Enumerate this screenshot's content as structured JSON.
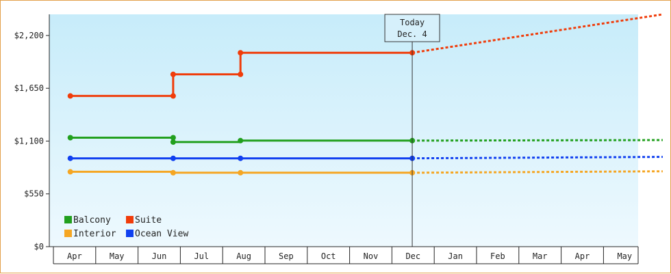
{
  "chart_data": {
    "type": "line",
    "title": "",
    "xlabel": "",
    "ylabel": "",
    "x_categories": [
      "Apr",
      "May",
      "Jun",
      "Jul",
      "Aug",
      "Sep",
      "Oct",
      "Nov",
      "Dec",
      "Jan",
      "Feb",
      "Mar",
      "Apr",
      "May"
    ],
    "y_ticks": [
      0,
      550,
      1100,
      1650,
      2200
    ],
    "y_tick_labels": [
      "$0",
      "$550",
      "$1,100",
      "$1,650",
      "$2,200"
    ],
    "ylim": [
      0,
      2420
    ],
    "grid": false,
    "legend_position": "bottom-left",
    "today_marker": {
      "label": "Today",
      "date": "Dec. 4",
      "x": 7.98
    },
    "series": [
      {
        "name": "Balcony",
        "color": "#22a01e",
        "actual": [
          [
            -0.1,
            1135
          ],
          [
            2.33,
            1135
          ],
          [
            2.33,
            1090
          ],
          [
            3.92,
            1090
          ],
          [
            3.92,
            1105
          ],
          [
            7.98,
            1105
          ]
        ],
        "forecast": [
          [
            7.98,
            1105
          ],
          [
            13.9,
            1110
          ]
        ],
        "points": [
          [
            -0.1,
            1135
          ],
          [
            2.33,
            1135
          ],
          [
            2.33,
            1090
          ],
          [
            3.92,
            1105
          ],
          [
            7.98,
            1105
          ]
        ]
      },
      {
        "name": "Suite",
        "color": "#f03c0a",
        "actual": [
          [
            -0.1,
            1570
          ],
          [
            2.33,
            1570
          ],
          [
            2.33,
            1795
          ],
          [
            3.92,
            1795
          ],
          [
            3.92,
            2020
          ],
          [
            7.98,
            2020
          ]
        ],
        "forecast": [
          [
            7.98,
            2020
          ],
          [
            13.9,
            2420
          ]
        ],
        "points": [
          [
            -0.1,
            1570
          ],
          [
            2.33,
            1570
          ],
          [
            2.33,
            1795
          ],
          [
            3.92,
            1795
          ],
          [
            3.92,
            2020
          ],
          [
            7.98,
            2020
          ]
        ]
      },
      {
        "name": "Interior",
        "color": "#f5a623",
        "actual": [
          [
            -0.1,
            780
          ],
          [
            2.33,
            780
          ],
          [
            2.33,
            770
          ],
          [
            3.92,
            770
          ],
          [
            3.92,
            770
          ],
          [
            7.98,
            770
          ]
        ],
        "forecast": [
          [
            7.98,
            770
          ],
          [
            13.9,
            785
          ]
        ],
        "points": [
          [
            -0.1,
            780
          ],
          [
            2.33,
            770
          ],
          [
            3.92,
            770
          ],
          [
            7.98,
            770
          ]
        ]
      },
      {
        "name": "Ocean View",
        "color": "#1040f0",
        "actual": [
          [
            -0.1,
            920
          ],
          [
            2.33,
            920
          ],
          [
            3.92,
            920
          ],
          [
            7.98,
            920
          ]
        ],
        "forecast": [
          [
            7.98,
            920
          ],
          [
            13.9,
            935
          ]
        ],
        "points": [
          [
            -0.1,
            920
          ],
          [
            2.33,
            920
          ],
          [
            3.92,
            920
          ],
          [
            7.98,
            920
          ]
        ]
      }
    ]
  }
}
